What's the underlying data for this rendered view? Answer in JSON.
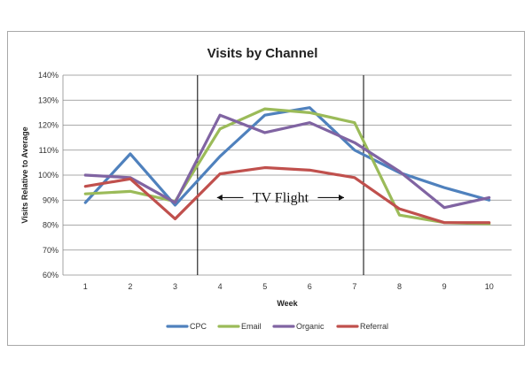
{
  "chart_data": {
    "type": "line",
    "title": "Visits by Channel",
    "xlabel": "Week",
    "ylabel": "Visits Relative to Average",
    "x": [
      1,
      2,
      3,
      4,
      5,
      6,
      7,
      8,
      9,
      10
    ],
    "x_tick_labels": [
      "1",
      "2",
      "3",
      "4",
      "5",
      "6",
      "7",
      "8",
      "9",
      "10"
    ],
    "ylim": [
      60,
      140
    ],
    "y_ticks": [
      60,
      70,
      80,
      90,
      100,
      110,
      120,
      130,
      140
    ],
    "y_tick_labels": [
      "60%",
      "70%",
      "80%",
      "90%",
      "100%",
      "110%",
      "120%",
      "130%",
      "140%"
    ],
    "grid": true,
    "legend_position": "bottom",
    "series": [
      {
        "name": "CPC",
        "color": "#4f81bd",
        "values": [
          89,
          108.5,
          88,
          107.5,
          124,
          127,
          110,
          101,
          95,
          90
        ]
      },
      {
        "name": "Email",
        "color": "#9bbb59",
        "values": [
          92.5,
          93.5,
          89.5,
          118.5,
          126.5,
          125,
          121,
          84,
          81,
          80.5
        ]
      },
      {
        "name": "Organic",
        "color": "#8064a2",
        "values": [
          100,
          99,
          89,
          124,
          117,
          121,
          113,
          101.5,
          87,
          91
        ]
      },
      {
        "name": "Referral",
        "color": "#c0504d",
        "values": [
          95.5,
          98.5,
          82.5,
          100.5,
          103,
          102,
          99,
          86.5,
          81,
          81
        ]
      }
    ],
    "annotations": [
      {
        "text": "TV Flight",
        "x_start": 3.5,
        "x_end": 7.2,
        "y": 91
      }
    ]
  }
}
